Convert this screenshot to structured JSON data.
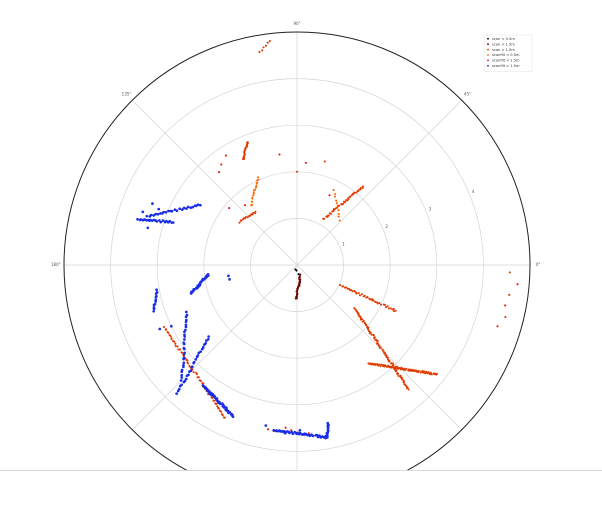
{
  "chart_data": {
    "type": "scatter",
    "projection": "polar",
    "theta_zero": "east",
    "theta_direction": "counterclockwise",
    "r_max": 5,
    "r_gridlines": [
      1,
      2,
      3,
      4
    ],
    "angle_ticks": [
      {
        "deg": 0,
        "label": "0°"
      },
      {
        "deg": 45,
        "label": "45°"
      },
      {
        "deg": 90,
        "label": "90°"
      },
      {
        "deg": 135,
        "label": "135°"
      },
      {
        "deg": 180,
        "label": "180°"
      }
    ],
    "radial_tick_labels": [
      "1",
      "2",
      "3",
      "4"
    ],
    "radial_label_angle_deg": 22,
    "grid": true,
    "legend_position": "top-right",
    "legend": [
      {
        "label": "scan < 0.5m",
        "color": "#000000"
      },
      {
        "label": "scan < 1.5m",
        "color": "#6b0000"
      },
      {
        "label": "scan > 1.5m",
        "color": "#e03a00"
      },
      {
        "label": "scanfilt < 0.5m",
        "color": "#ff6600"
      },
      {
        "label": "scanfilt < 1.5m",
        "color": "#ee1111"
      },
      {
        "label": "scanfilt > 1.5m",
        "color": "#1a2ee6"
      }
    ],
    "series": [
      {
        "name": "scan < 0.5m",
        "color": "#000000",
        "points": [
          [
            0.12,
            265
          ],
          [
            0.2,
            280
          ],
          [
            0.1,
            250
          ]
        ]
      },
      {
        "name": "scan < 1.5m",
        "color": "#6b0000",
        "segments": [
          {
            "from": [
              0.72,
              268
            ],
            "to": [
              0.22,
              292
            ],
            "n": 30
          }
        ]
      },
      {
        "name": "scan > 1.5m",
        "color": "#e03a00",
        "segments": [
          {
            "from": [
              2.2,
              50
            ],
            "to": [
              1.14,
              60
            ],
            "n": 40
          },
          {
            "from": [
              1.02,
              335
            ],
            "to": [
              2.34,
              335
            ],
            "n": 40
          },
          {
            "from": [
              2.61,
              306
            ],
            "to": [
              3.81,
              322
            ],
            "n": 80
          },
          {
            "from": [
              1.54,
              323
            ],
            "to": [
              3.58,
              312
            ],
            "n": 90
          },
          {
            "from": [
              1.45,
              128
            ],
            "to": [
              1.54,
              143
            ],
            "n": 15
          },
          {
            "from": [
              2.55,
              117
            ],
            "to": [
              2.85,
              112
            ],
            "n": 22
          },
          {
            "from": [
              4.64,
              100
            ],
            "to": [
              4.85,
              97
            ],
            "n": 6
          },
          {
            "from": [
              3.15,
              205
            ],
            "to": [
              3.63,
              245
            ],
            "n": 60
          }
        ],
        "points": [
          [
            4.61,
            346
          ],
          [
            4.6,
            352
          ],
          [
            4.57,
            358
          ],
          [
            2.3,
            75
          ],
          [
            2.0,
            90
          ]
        ]
      },
      {
        "name": "scanfilt < 0.5m",
        "color": "#ff6600",
        "segments": [
          {
            "from": [
              1.79,
              64
            ],
            "to": [
              1.33,
              46
            ],
            "n": 10
          },
          {
            "from": [
              2.06,
              114
            ],
            "to": [
              1.61,
              128
            ],
            "n": 18
          }
        ]
      },
      {
        "name": "scanfilt < 1.5m",
        "color": "#ee1111",
        "points": [
          [
            2.6,
            130
          ],
          [
            2.7,
            127
          ],
          [
            2.8,
            123
          ],
          [
            1.9,
            140
          ],
          [
            1.7,
            131
          ],
          [
            2.4,
            99
          ],
          [
            2.2,
            85
          ],
          [
            4.55,
            349
          ],
          [
            4.75,
            355
          ],
          [
            4.5,
            343
          ],
          [
            1.65,
            65
          ],
          [
            3.6,
            262
          ],
          [
            3.55,
            268
          ],
          [
            3.6,
            270
          ],
          [
            3.62,
            274
          ],
          [
            3.5,
            266
          ],
          [
            3.58,
            260
          ]
        ]
      },
      {
        "name": "scanfilt > 1.5m",
        "color": "#1a2ee6",
        "segments": [
          {
            "from": [
              3.56,
              164
            ],
            "to": [
              2.82,
              161
            ],
            "n": 22
          },
          {
            "from": [
              3.39,
              162
            ],
            "to": [
              2.43,
              148
            ],
            "n": 26
          },
          {
            "from": [
              1.92,
              186
            ],
            "to": [
              2.34,
              195
            ],
            "n": 30
          },
          {
            "from": [
              3.06,
              190
            ],
            "to": [
              3.23,
              198
            ],
            "n": 12
          },
          {
            "from": [
              2.58,
              203
            ],
            "to": [
              3.49,
              225
            ],
            "n": 28
          },
          {
            "from": [
              2.44,
              219
            ],
            "to": [
              3.76,
              227
            ],
            "n": 28
          },
          {
            "from": [
              3.28,
              232
            ],
            "to": [
              3.52,
              247
            ],
            "n": 50
          },
          {
            "from": [
              3.58,
              262
            ],
            "to": [
              3.76,
              280
            ],
            "n": 40
          },
          {
            "from": [
              3.46,
              281
            ],
            "to": [
              3.76,
              280
            ],
            "n": 12
          }
        ],
        "points": [
          [
            1.48,
            192
          ],
          [
            1.49,
            189
          ],
          [
            3.2,
            158
          ],
          [
            3.5,
            161
          ],
          [
            3.3,
            166
          ],
          [
            3.37,
            157
          ],
          [
            3.51,
            259
          ],
          [
            3.62,
            266
          ],
          [
            3.55,
            271
          ],
          [
            3.25,
            205
          ],
          [
            3.0,
            206
          ]
        ]
      }
    ]
  }
}
